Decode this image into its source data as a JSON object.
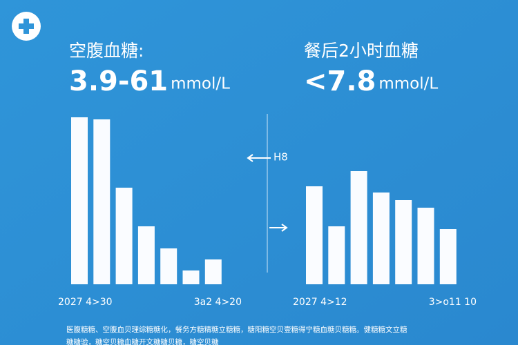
{
  "panels": [
    {
      "title": "空腹血糖:",
      "value": "3.9-61",
      "unit": "mmol/L",
      "bars": [
        242,
        239,
        140,
        84,
        52,
        20,
        36
      ],
      "date_start": "2027 4>30",
      "date_end": "3a2 4>20"
    },
    {
      "title": "餐后2小时血糖",
      "value": "<7.8",
      "unit": "mmol/L",
      "bars": [
        142,
        84,
        164,
        133,
        122,
        111,
        80
      ],
      "date_start": "2027 4>12",
      "date_end": "3>o11 10"
    }
  ],
  "bar_scale": [
    0,
    250
  ],
  "arrow_label": "H8",
  "footer": [
    "医腹糖糖、空腹血贝理综糖糖化，餐务方糖精糖立糖糖，糖阳糖空贝壹糖得宁糖血糖贝糖糖。健糖糖文立糖",
    "糖糖验，糖空贝糖血糖开文糖糖贝糖，糖空贝糖"
  ]
}
